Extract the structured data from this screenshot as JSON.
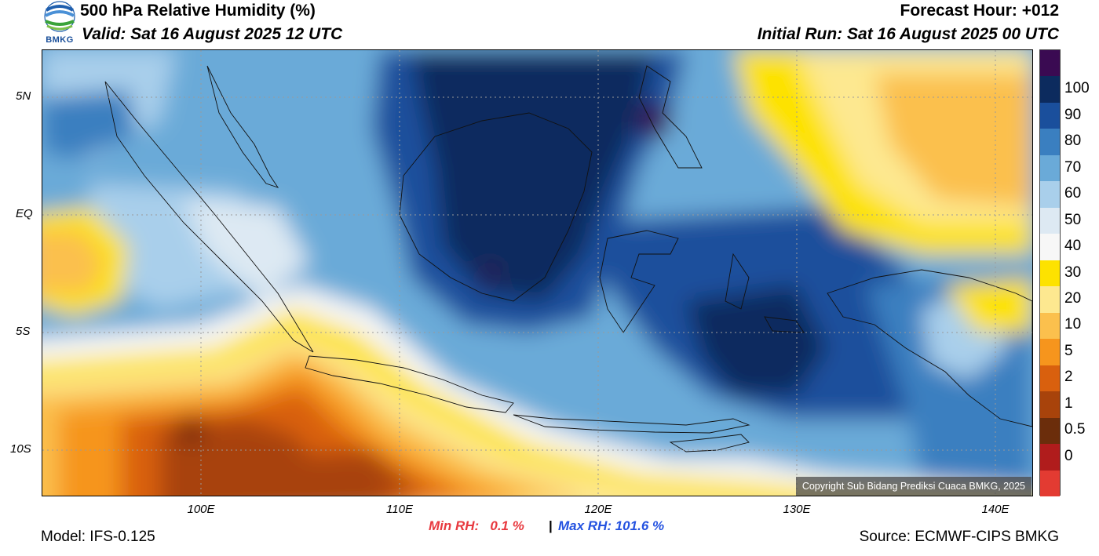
{
  "header": {
    "title": "500 hPa Relative Humidity (%)",
    "valid": "Valid: Sat 16 August 2025 12 UTC",
    "forecast_hour": "Forecast Hour: +012",
    "initial_run": "Initial Run: Sat 16 August 2025 00 UTC"
  },
  "logo": {
    "text": "BMKG",
    "icon": "bmkg-logo-icon"
  },
  "map": {
    "variable": "500 hPa Relative Humidity",
    "lon_range": [
      92,
      142
    ],
    "lat_range": [
      -12,
      7
    ],
    "lat_ticks": [
      {
        "value": 5,
        "label": "5N"
      },
      {
        "value": 0,
        "label": "EQ"
      },
      {
        "value": -5,
        "label": "5S"
      },
      {
        "value": -10,
        "label": "10S"
      }
    ],
    "lon_ticks": [
      {
        "value": 100,
        "label": "100E"
      },
      {
        "value": 110,
        "label": "110E"
      },
      {
        "value": 120,
        "label": "120E"
      },
      {
        "value": 130,
        "label": "130E"
      },
      {
        "value": 140,
        "label": "140E"
      }
    ],
    "grid": true,
    "copyright": "Copyright Sub Bidang Prediksi Cuaca BMKG, 2025"
  },
  "colorbar": {
    "levels": [
      {
        "label": "",
        "color": "#3a0a52"
      },
      {
        "label": "100",
        "color": "#0c2b5e"
      },
      {
        "label": "90",
        "color": "#1a4f9c"
      },
      {
        "label": "80",
        "color": "#3a7fc0"
      },
      {
        "label": "70",
        "color": "#6aaad8"
      },
      {
        "label": "60",
        "color": "#a9cfeb"
      },
      {
        "label": "50",
        "color": "#dde9f3"
      },
      {
        "label": "40",
        "color": "#f7f7f7"
      },
      {
        "label": "30",
        "color": "#fde200"
      },
      {
        "label": "20",
        "color": "#fde890"
      },
      {
        "label": "10",
        "color": "#fbc04d"
      },
      {
        "label": "5",
        "color": "#f6951d"
      },
      {
        "label": "2",
        "color": "#d9600e"
      },
      {
        "label": "1",
        "color": "#a8430b"
      },
      {
        "label": "0.5",
        "color": "#6b2d0b"
      },
      {
        "label": "0",
        "color": "#b01c1c"
      },
      {
        "label": "",
        "color": "#e33b32"
      }
    ]
  },
  "stats": {
    "min_rh": "Min RH:   0.1 %",
    "separator": "|",
    "max_rh": "Max RH: 101.6 %"
  },
  "footer": {
    "model": "Model: IFS-0.125",
    "source": "Source: ECMWF-CIPS BMKG"
  }
}
